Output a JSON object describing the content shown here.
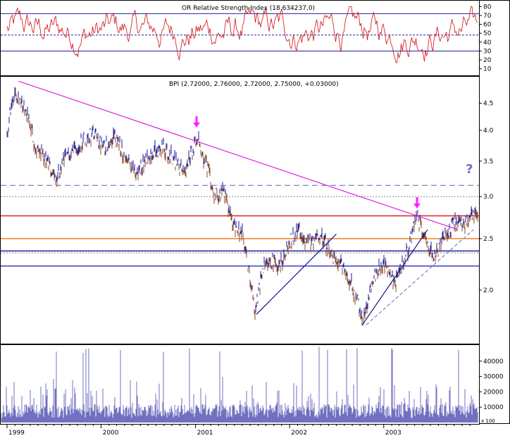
{
  "chart_data": [
    {
      "type": "line",
      "panel": "rsi",
      "title": "OR Relative Strength Index (18.634237,0)",
      "ylim": [
        5,
        85
      ],
      "ticks": [
        10,
        20,
        30,
        40,
        50,
        60,
        70,
        80
      ],
      "bands": [
        30,
        48,
        72
      ],
      "series_color": "#d01010",
      "band_color": "#2020a0",
      "grid": false
    },
    {
      "type": "bar",
      "panel": "price",
      "title": "BPI (2.72000, 2.76000, 2.72000, 2.75000, +0.03000)",
      "yscale": "log",
      "ylim": [
        1.6,
        5.0
      ],
      "ticks": [
        2.0,
        2.5,
        3.0,
        3.5,
        4.0,
        4.5
      ],
      "tick_labels": [
        "2.0",
        "2.5",
        "3.0",
        "3.5",
        "4.0",
        "4.5"
      ],
      "series": [
        {
          "name": "BPI",
          "color_up": "#1a1a9a",
          "color_down": "#8a4a2a",
          "anchors": [
            [
              "1999-01-01",
              4.0
            ],
            [
              "1999-02-01",
              4.75
            ],
            [
              "1999-03-20",
              4.3
            ],
            [
              "1999-04-20",
              3.7
            ],
            [
              "1999-06-01",
              3.5
            ],
            [
              "1999-07-10",
              3.2
            ],
            [
              "1999-08-20",
              3.6
            ],
            [
              "1999-10-15",
              3.8
            ],
            [
              "1999-12-01",
              3.95
            ],
            [
              "2000-01-10",
              3.7
            ],
            [
              "2000-02-20",
              3.9
            ],
            [
              "2000-04-10",
              3.5
            ],
            [
              "2000-05-20",
              3.3
            ],
            [
              "2000-07-01",
              3.6
            ],
            [
              "2000-09-01",
              3.7
            ],
            [
              "2000-10-15",
              3.5
            ],
            [
              "2000-11-20",
              3.3
            ],
            [
              "2001-01-05",
              3.9
            ],
            [
              "2001-02-15",
              3.4
            ],
            [
              "2001-03-15",
              3.0
            ],
            [
              "2001-04-20",
              3.1
            ],
            [
              "2001-05-20",
              2.7
            ],
            [
              "2001-07-01",
              2.55
            ],
            [
              "2001-08-20",
              1.82
            ],
            [
              "2001-10-01",
              2.3
            ],
            [
              "2001-11-20",
              2.2
            ],
            [
              "2002-01-01",
              2.45
            ],
            [
              "2002-02-01",
              2.6
            ],
            [
              "2002-03-15",
              2.45
            ],
            [
              "2002-05-01",
              2.55
            ],
            [
              "2002-06-15",
              2.3
            ],
            [
              "2002-08-01",
              2.2
            ],
            [
              "2002-09-15",
              1.95
            ],
            [
              "2002-10-15",
              1.75
            ],
            [
              "2002-11-20",
              2.1
            ],
            [
              "2003-01-01",
              2.25
            ],
            [
              "2003-02-15",
              2.05
            ],
            [
              "2003-04-01",
              2.35
            ],
            [
              "2003-05-10",
              2.75
            ],
            [
              "2003-06-10",
              2.5
            ],
            [
              "2003-07-20",
              2.3
            ],
            [
              "2003-09-01",
              2.55
            ],
            [
              "2003-10-01",
              2.7
            ],
            [
              "2003-11-15",
              2.65
            ],
            [
              "2003-12-10",
              2.75
            ]
          ]
        }
      ],
      "hlines": [
        {
          "value": 3.15,
          "color": "#6060b0",
          "style": "dashed"
        },
        {
          "value": 3.0,
          "color": "#888888",
          "style": "dotted"
        },
        {
          "value": 2.76,
          "color": "#e02020",
          "style": "solid"
        },
        {
          "value": 2.5,
          "color": "#f08020",
          "style": "solid"
        },
        {
          "value": 2.37,
          "color": "#2020a0",
          "style": "solid"
        },
        {
          "value": 2.35,
          "color": "#888888",
          "style": "dotted"
        },
        {
          "value": 2.22,
          "color": "#4040c0",
          "style": "solid"
        }
      ],
      "trendlines": [
        {
          "from": [
            "1999-02-15",
            4.95
          ],
          "to": [
            "2003-10-15",
            2.6
          ],
          "color": "#e020e0"
        },
        {
          "from": [
            "2001-08-25",
            1.8
          ],
          "to": [
            "2002-07-01",
            2.55
          ],
          "color": "#10108a"
        },
        {
          "from": [
            "2002-10-10",
            1.72
          ],
          "to": [
            "2003-06-20",
            2.6
          ],
          "color": "#10108a"
        },
        {
          "from": [
            "2002-10-25",
            1.72
          ],
          "to": [
            "2003-12-15",
            2.6
          ],
          "color": "#8080d0",
          "style": "dashed"
        }
      ],
      "annotations": [
        {
          "type": "arrow",
          "x": "2001-01-05",
          "y": 4.05,
          "color": "#ff20ff"
        },
        {
          "type": "arrow",
          "x": "2003-05-10",
          "y": 2.85,
          "color": "#ff20ff"
        },
        {
          "type": "text",
          "x": "2003-11-15",
          "y": 3.32,
          "text": "?",
          "color": "#7070c0"
        }
      ]
    },
    {
      "type": "bar",
      "panel": "volume",
      "ylim": [
        0,
        50000
      ],
      "ticks": [
        10000,
        20000,
        30000,
        40000
      ],
      "tick_labels": [
        "10000",
        "20000",
        "30000",
        "40000"
      ],
      "unit_label": "x 100",
      "fill_color": "#7070c0"
    }
  ],
  "x_axis": {
    "start": "1999-01-01",
    "end": "2003-12-31",
    "labels": [
      {
        "date": "1999-01-01",
        "text": "1999"
      },
      {
        "date": "2000-01-01",
        "text": "2000"
      },
      {
        "date": "2001-01-01",
        "text": "2001"
      },
      {
        "date": "2002-01-01",
        "text": "2002"
      },
      {
        "date": "2003-01-01",
        "text": "2003"
      }
    ]
  },
  "colors": {
    "frame": "#000000",
    "background": "#ffffff"
  }
}
